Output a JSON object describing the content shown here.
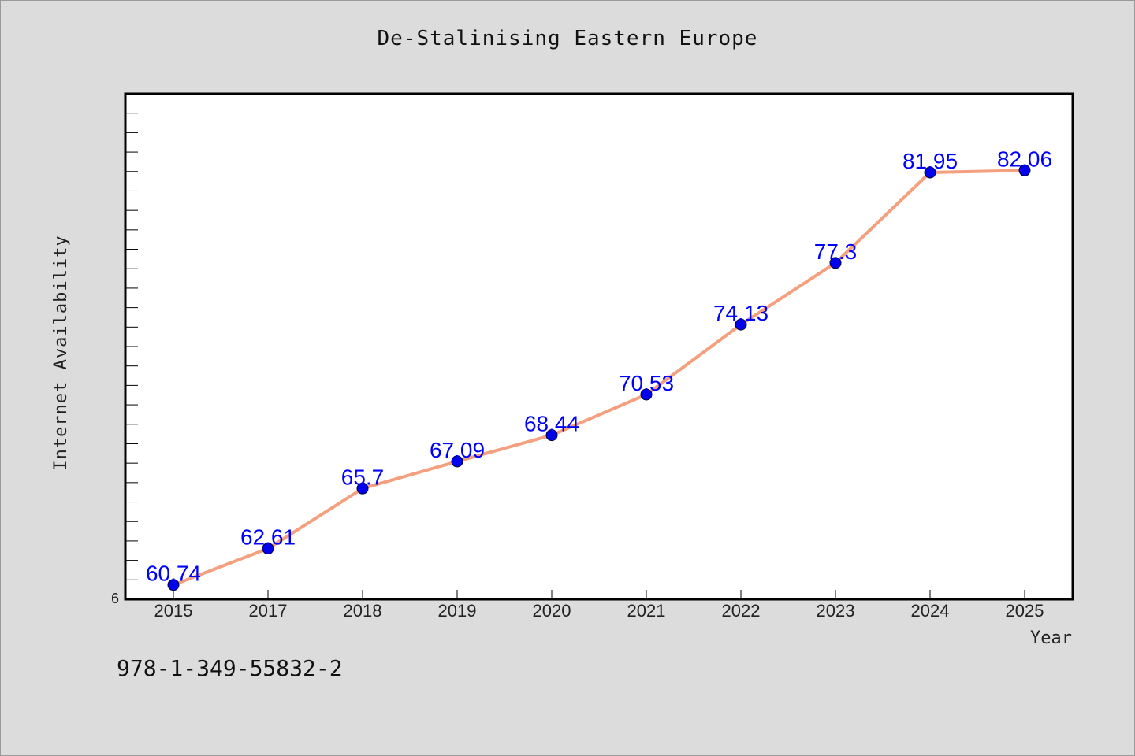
{
  "chart_data": {
    "type": "line",
    "title": "De-Stalinising Eastern Europe",
    "xlabel": "Year",
    "ylabel": "Internet Availability",
    "categories": [
      "2015",
      "2017",
      "2018",
      "2019",
      "2020",
      "2021",
      "2022",
      "2023",
      "2024",
      "2025"
    ],
    "series": [
      {
        "values": [
          60.74,
          62.61,
          65.7,
          67.09,
          68.44,
          70.53,
          74.13,
          77.3,
          81.95,
          82.06
        ],
        "labels": [
          "60.74",
          "62.61",
          "65.7",
          "67.09",
          "68.44",
          "70.53",
          "74.13",
          "77.3",
          "81.95",
          "82.06"
        ]
      }
    ],
    "y_tick_labels": [
      "6"
    ],
    "ylim": [
      60,
      86
    ],
    "grid": false,
    "line_color": "#f4a07e",
    "marker_color": "#0000ee",
    "label_color": "#0000ff"
  },
  "footer": {
    "code": "978-1-349-55832-2"
  }
}
